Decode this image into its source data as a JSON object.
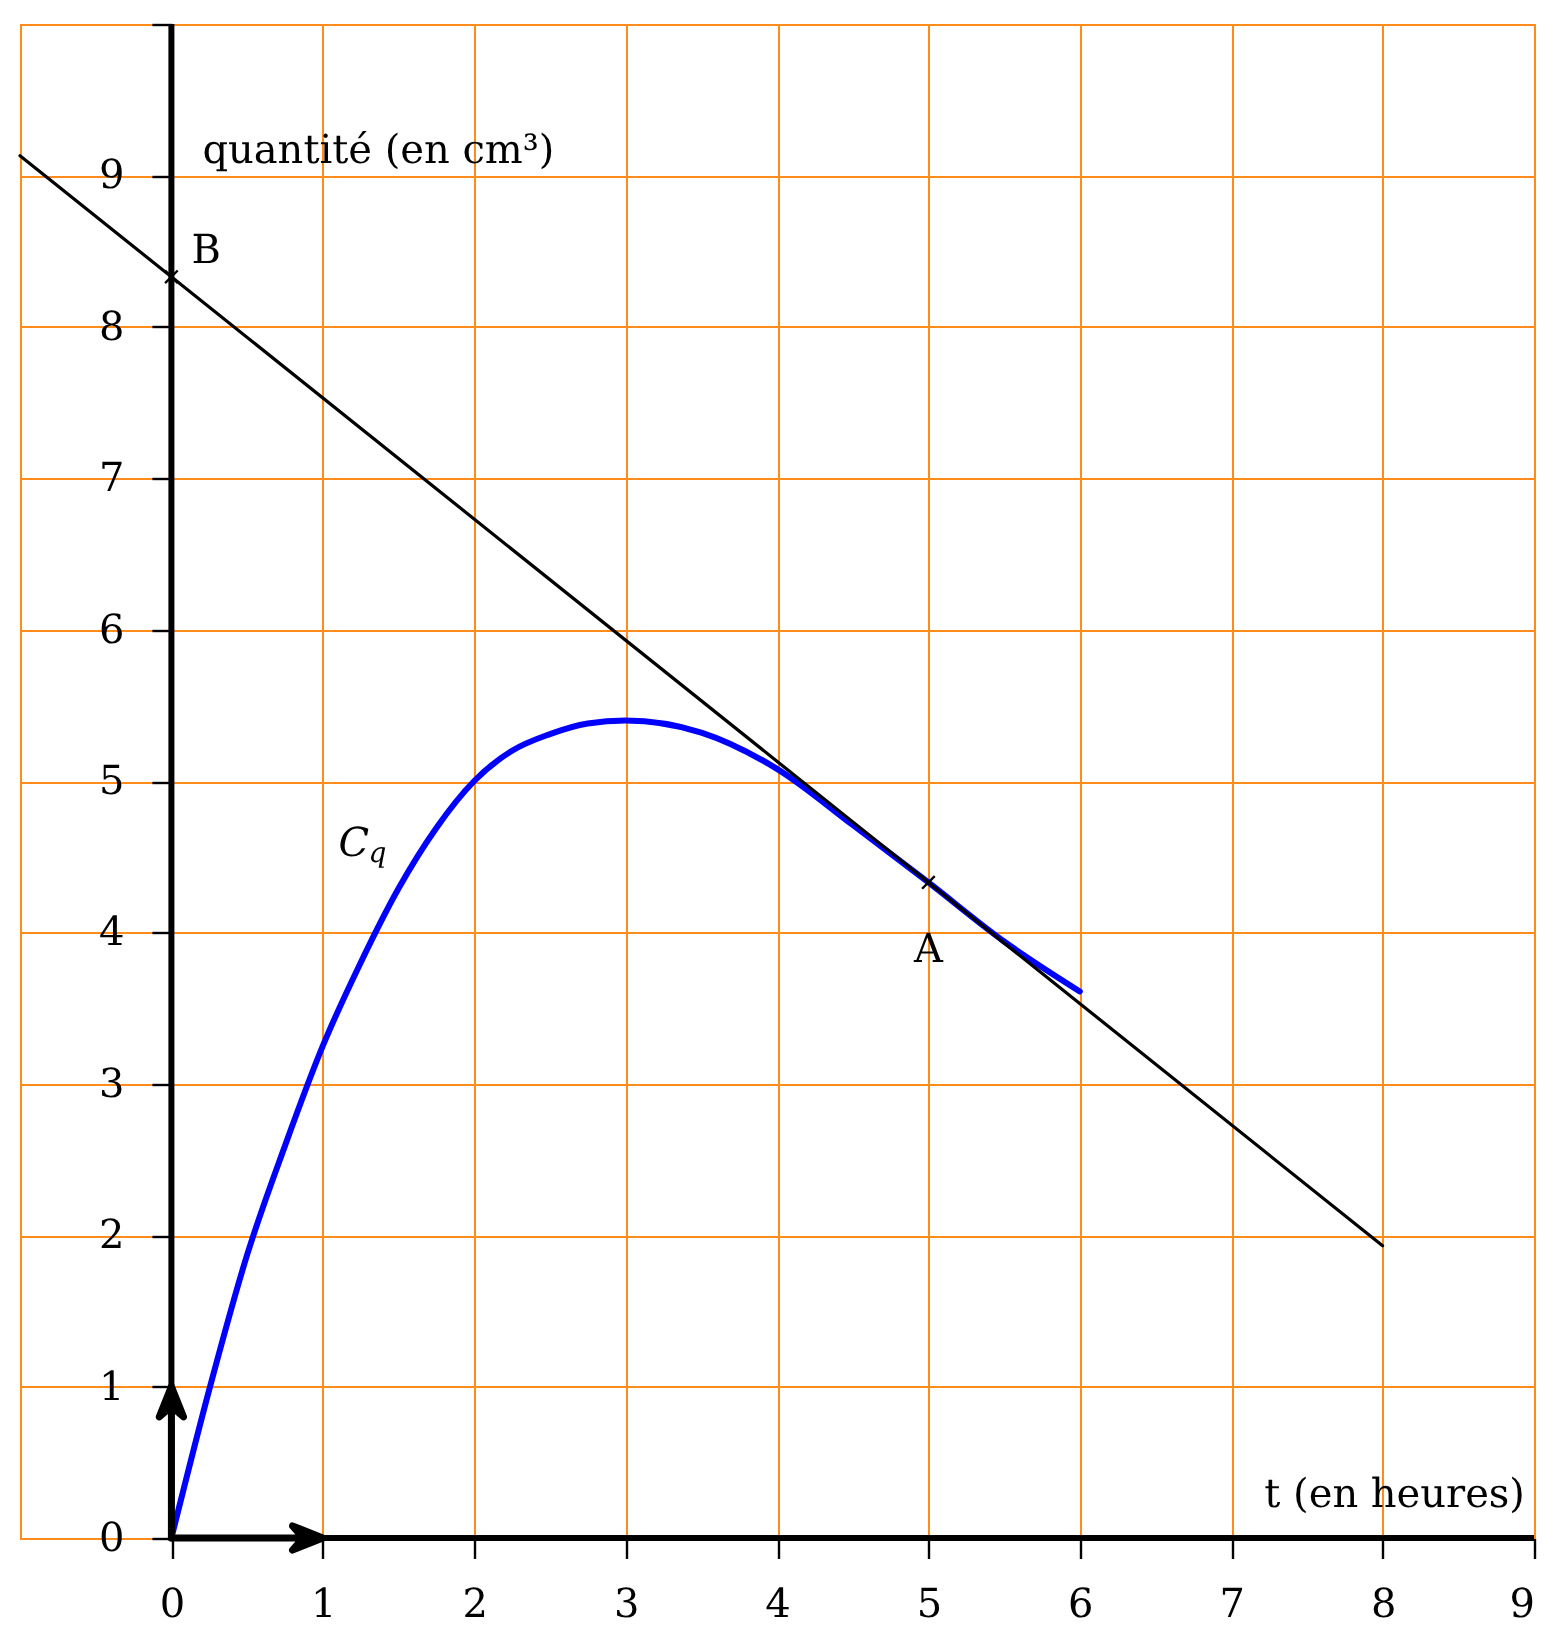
{
  "chart_data": {
    "type": "line",
    "xlabel": "t (en heures)",
    "ylabel": "quantité (en cm³)",
    "xlim": [
      -1,
      9
    ],
    "ylim": [
      0,
      10
    ],
    "xticks": [
      0,
      1,
      2,
      3,
      4,
      5,
      6,
      7,
      8,
      9
    ],
    "yticks": [
      0,
      1,
      2,
      3,
      4,
      5,
      6,
      7,
      8,
      9,
      {
        "value": 10,
        "label": null
      }
    ],
    "grid": true,
    "series": [
      {
        "name": "C$_{q}$",
        "color": "#0000ff",
        "x": [
          0,
          0.25,
          0.5,
          0.75,
          1,
          1.25,
          1.5,
          1.75,
          2,
          2.25,
          2.5,
          2.75,
          3,
          3.5,
          4,
          4.5,
          5,
          5.5,
          6
        ],
        "values": [
          0,
          0.98,
          1.87,
          2.59,
          3.25,
          3.8,
          4.29,
          4.69,
          5.0,
          5.2,
          5.31,
          5.38,
          5.4,
          5.32,
          5.08,
          4.71,
          4.33,
          3.94,
          3.61
        ]
      },
      {
        "color": "#000000",
        "x": [
          -1,
          8
        ],
        "values": [
          9.13,
          1.93
        ]
      },
      {
        "type": "scatter",
        "color": "#000000",
        "marker": "cross",
        "x": [
          5,
          0
        ],
        "values": [
          4.33,
          8.33
        ]
      }
    ],
    "annotations": [
      {
        "text": "A",
        "x": 5,
        "y": 4.33
      },
      {
        "text": "B",
        "x": 0,
        "y": 8.33
      }
    ]
  }
}
